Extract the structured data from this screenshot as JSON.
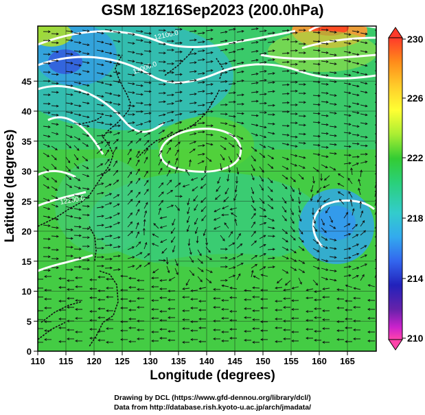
{
  "title": "GSM 18Z16Sep2023 (200.0hPa)",
  "x_axis": {
    "label": "Longitude (degrees)",
    "ticks": [
      "110",
      "115",
      "120",
      "125",
      "130",
      "135",
      "140",
      "145",
      "150",
      "155",
      "160",
      "165"
    ]
  },
  "y_axis": {
    "label": "Latitude  (degrees)",
    "ticks": [
      "0",
      "5",
      "10",
      "15",
      "20",
      "25",
      "30",
      "35",
      "40",
      "45"
    ]
  },
  "colorbar": {
    "labels": [
      "230",
      "226",
      "222",
      "218",
      "214",
      "210"
    ],
    "colors": [
      "#ff3a2a",
      "#ff8c1a",
      "#ffcc2a",
      "#ffff33",
      "#aaee33",
      "#33cc33",
      "#2ad07a",
      "#33cccc",
      "#33aaee",
      "#3366ee",
      "#2222bb",
      "#6622aa",
      "#cc22cc",
      "#ff44aa"
    ]
  },
  "contour_labels": [
    "12100.0",
    "12000.0",
    "12200.0"
  ],
  "credits": {
    "line1": "Drawing by DCL (https://www.gfd-dennou.org/library/dcl/)",
    "line2": "Data from http://database.rish.kyoto-u.ac.jp/arch/jmadata/"
  }
}
